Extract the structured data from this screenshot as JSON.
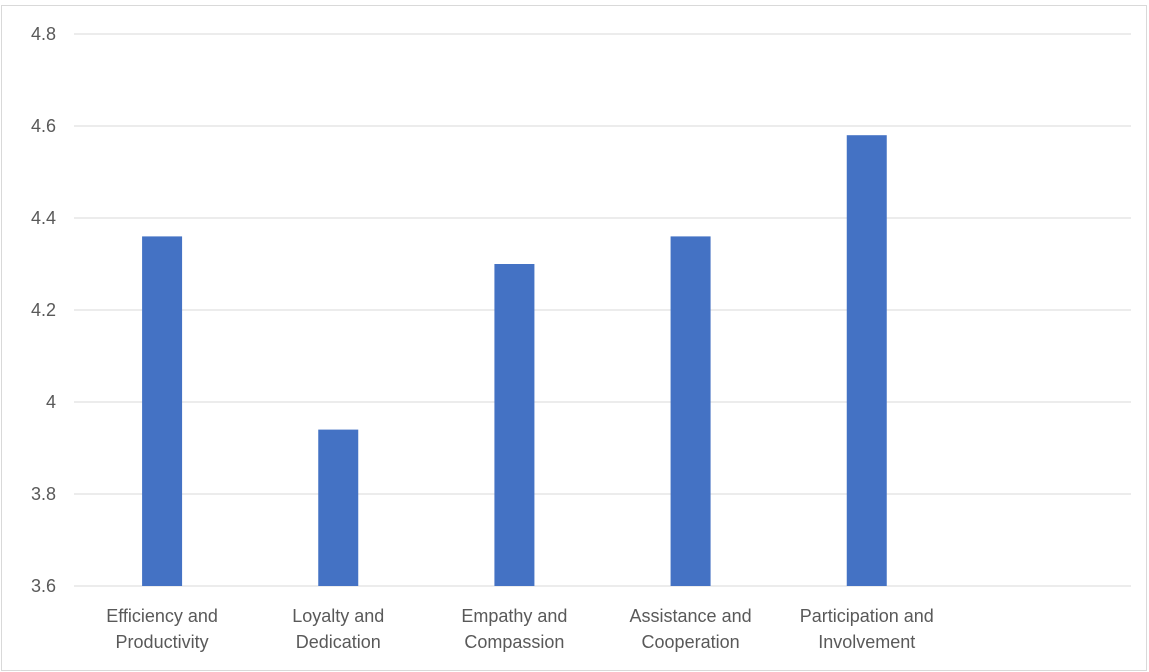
{
  "chart_data": {
    "type": "bar",
    "categories": [
      [
        "Efficiency and",
        "Productivity"
      ],
      [
        "Loyalty and",
        "Dedication"
      ],
      [
        "Empathy and",
        "Compassion"
      ],
      [
        "Assistance and",
        "Cooperation"
      ],
      [
        "Participation and",
        "Involvement"
      ],
      [
        "",
        ""
      ]
    ],
    "values": [
      4.36,
      3.94,
      4.3,
      4.36,
      4.58,
      null
    ],
    "yticks": [
      "3.6",
      "3.8",
      "4",
      "4.2",
      "4.4",
      "4.6",
      "4.8"
    ],
    "ylim": [
      3.6,
      4.8
    ],
    "grid": true,
    "legend": "none",
    "title": "",
    "xlabel": "",
    "ylabel": "",
    "bar_color": "#4472c4",
    "grid_color": "#d9d9d9",
    "label_color": "#595959"
  }
}
